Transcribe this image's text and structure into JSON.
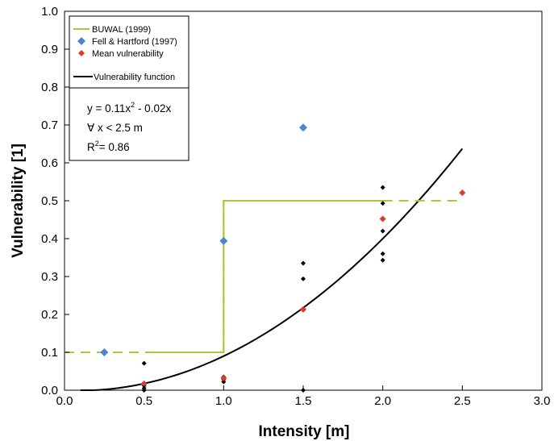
{
  "chart_data": {
    "type": "scatter",
    "title": "",
    "xlabel": "Intensity [m]",
    "ylabel": "Vulnerability [1]",
    "xlim": [
      0.0,
      3.0
    ],
    "ylim": [
      0.0,
      1.0
    ],
    "xticks": [
      "0.0",
      "0.5",
      "1.0",
      "1.5",
      "2.0",
      "2.5",
      "3.0"
    ],
    "yticks": [
      "0.0",
      "0.1",
      "0.2",
      "0.3",
      "0.4",
      "0.5",
      "0.6",
      "0.7",
      "0.8",
      "0.9",
      "1.0"
    ],
    "grid": false,
    "legend_position": "top-left",
    "series": [
      {
        "name": "BUWAL (1999)",
        "kind": "step",
        "color": "#a8c93a",
        "solid_segments": [
          [
            [
              0.55,
              0.1
            ],
            [
              1.0,
              0.1
            ],
            [
              1.0,
              0.5
            ],
            [
              2.0,
              0.5
            ]
          ]
        ],
        "dashed_segments": [
          [
            [
              0.0,
              0.1
            ],
            [
              0.55,
              0.1
            ]
          ],
          [
            [
              1.0,
              0.1
            ],
            [
              1.0,
              0.5
            ]
          ],
          [
            [
              2.0,
              0.5
            ],
            [
              2.5,
              0.5
            ]
          ]
        ]
      },
      {
        "name": "Fell & Hartford (1997)",
        "kind": "points",
        "color": "#4a86c8",
        "points": [
          [
            0.25,
            0.1
          ],
          [
            1.0,
            0.394
          ],
          [
            1.5,
            0.693
          ]
        ]
      },
      {
        "name": "Mean vulnerability",
        "kind": "points",
        "color": "#e03a2e",
        "points": [
          [
            0.5,
            0.017
          ],
          [
            1.0,
            0.032
          ],
          [
            1.5,
            0.213
          ],
          [
            2.0,
            0.452
          ],
          [
            2.5,
            0.521
          ]
        ]
      },
      {
        "name": "",
        "kind": "points",
        "color": "#000000",
        "points": [
          [
            0.5,
            0.071
          ],
          [
            0.5,
            0.018
          ],
          [
            0.5,
            0.012
          ],
          [
            0.5,
            0.005
          ],
          [
            0.5,
            0.0
          ],
          [
            1.0,
            0.035
          ],
          [
            1.0,
            0.028
          ],
          [
            1.0,
            0.022
          ],
          [
            1.5,
            0.335
          ],
          [
            1.5,
            0.294
          ],
          [
            1.5,
            0.215
          ],
          [
            1.5,
            0.0
          ],
          [
            2.0,
            0.535
          ],
          [
            2.0,
            0.493
          ],
          [
            2.0,
            0.42
          ],
          [
            2.0,
            0.36
          ],
          [
            2.0,
            0.343
          ]
        ]
      },
      {
        "name": "Vulnerability function",
        "kind": "curve",
        "color": "#000000",
        "function": "y = 0.11x^2 - 0.02x",
        "a": 0.11,
        "b": -0.02,
        "x_range": [
          0.1,
          2.5
        ]
      }
    ],
    "annotation": {
      "equation_prefix": "y = 0.11x",
      "equation_exp": "2",
      "equation_suffix": " - 0.02x",
      "domain": "∀ x < 2.5 m",
      "r2_prefix": "R",
      "r2_exp": "2",
      "r2_suffix": "= 0.86"
    }
  }
}
